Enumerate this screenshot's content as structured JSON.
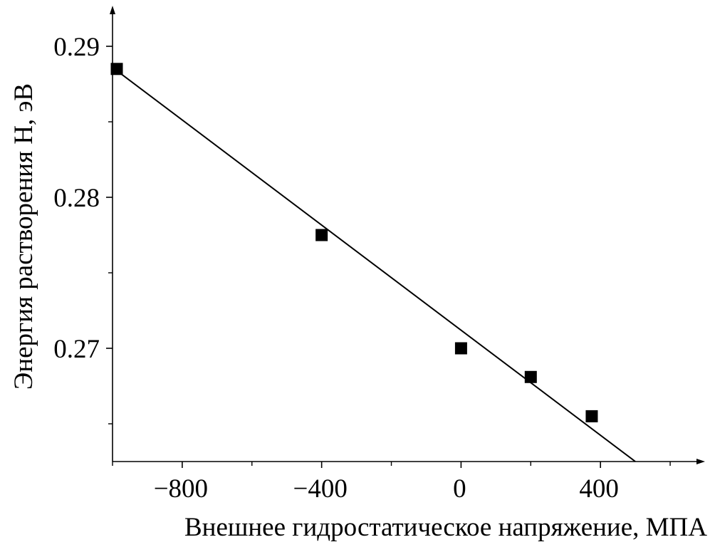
{
  "chart_data": {
    "type": "scatter",
    "title": "",
    "xlabel": "Внешнее гидростатическое напряжение, МПА",
    "ylabel": "Энергия растворения Н, эВ",
    "xlim": [
      -1000,
      700
    ],
    "ylim": [
      0.2625,
      0.2925
    ],
    "x_major_ticks": [
      -800,
      -400,
      0,
      400
    ],
    "x_tick_labels": [
      "−800",
      "−400",
      "0",
      "400"
    ],
    "x_minor_ticks": [
      -1000,
      -600,
      -200,
      200,
      600
    ],
    "y_major_ticks": [
      0.27,
      0.28,
      0.29
    ],
    "y_tick_labels": [
      "0.27",
      "0.28",
      "0.29"
    ],
    "y_minor_ticks": [
      0.265,
      0.275,
      0.285
    ],
    "grid": false,
    "series": [
      {
        "marker": "square",
        "color": "#000000",
        "points": [
          {
            "x": -1000,
            "y": 0.2885
          },
          {
            "x": -400,
            "y": 0.2775
          },
          {
            "x": 0,
            "y": 0.27
          },
          {
            "x": 200,
            "y": 0.2681
          },
          {
            "x": 375,
            "y": 0.2655
          }
        ]
      }
    ],
    "fit_line": {
      "color": "#000000",
      "from": {
        "x": -1000,
        "y": 0.2886
      },
      "to": {
        "x": 500,
        "y": 0.2625
      }
    }
  }
}
